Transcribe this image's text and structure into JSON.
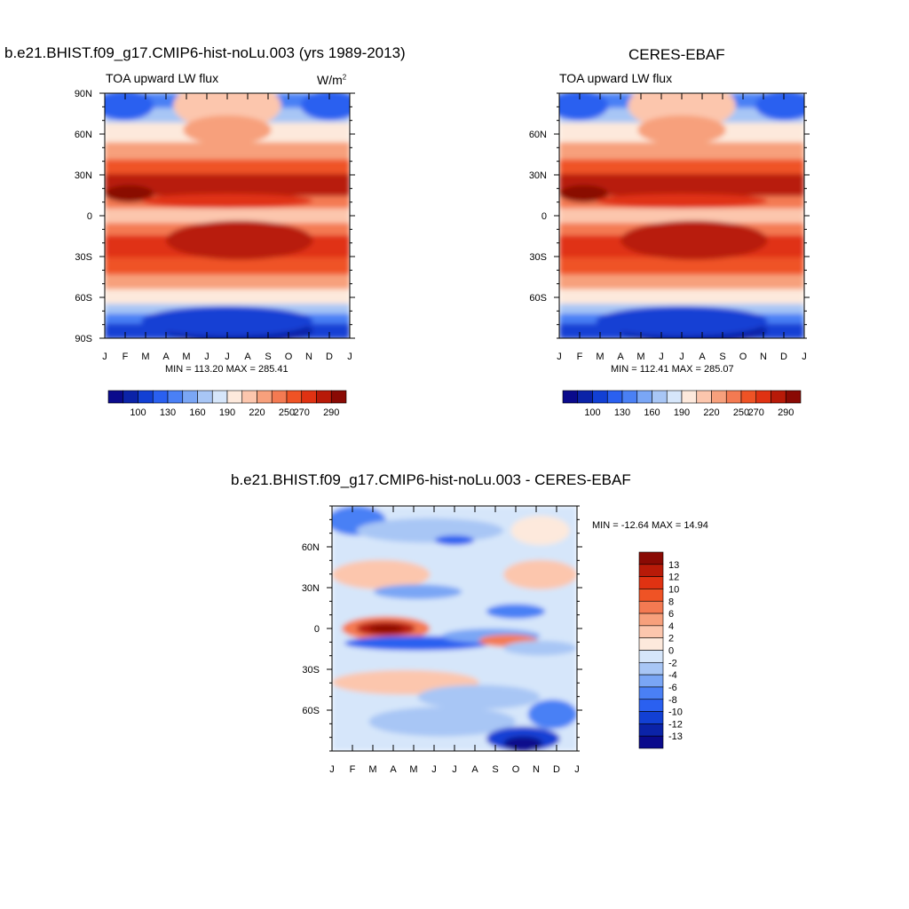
{
  "chart_data": [
    {
      "type": "heatmap",
      "title": "b.e21.BHIST.f09_g17.CMIP6-hist-noLu.003 (yrs 1989-2013)",
      "subtitle": "TOA upward LW flux",
      "units_label": "W/m",
      "units_superscript": "2",
      "x_ticks": [
        "J",
        "F",
        "M",
        "A",
        "M",
        "J",
        "J",
        "A",
        "S",
        "O",
        "N",
        "D",
        "J"
      ],
      "y_ticks": [
        "90N",
        "60N",
        "30N",
        "0",
        "30S",
        "60S",
        "90S"
      ],
      "stats": "MIN = 113.20 MAX = 285.41",
      "colorbar_labels": [
        "100",
        "130",
        "160",
        "190",
        "220",
        "250",
        "270",
        "290"
      ],
      "ylim": [
        -90,
        90
      ]
    },
    {
      "type": "heatmap",
      "title": "CERES-EBAF",
      "subtitle": "TOA upward LW flux",
      "x_ticks": [
        "J",
        "F",
        "M",
        "A",
        "M",
        "J",
        "J",
        "A",
        "S",
        "O",
        "N",
        "D",
        "J"
      ],
      "y_ticks": [
        "60N",
        "30N",
        "0",
        "30S",
        "60S"
      ],
      "stats": "MIN = 112.41 MAX = 285.07",
      "colorbar_labels": [
        "100",
        "130",
        "160",
        "190",
        "220",
        "250",
        "270",
        "290"
      ],
      "ylim": [
        -90,
        90
      ]
    },
    {
      "type": "heatmap",
      "title": "b.e21.BHIST.f09_g17.CMIP6-hist-noLu.003 - CERES-EBAF",
      "x_ticks": [
        "J",
        "F",
        "M",
        "A",
        "M",
        "J",
        "J",
        "A",
        "S",
        "O",
        "N",
        "D",
        "J"
      ],
      "y_ticks": [
        "60N",
        "30N",
        "0",
        "30S",
        "60S"
      ],
      "stats": "MIN = -12.64 MAX =  14.94",
      "colorbar_labels": [
        "13",
        "12",
        "10",
        "8",
        "6",
        "4",
        "2",
        "0",
        "-2",
        "-4",
        "-6",
        "-8",
        "-10",
        "-12",
        "-13"
      ],
      "ylim": [
        -90,
        90
      ]
    }
  ],
  "palettes": {
    "absolute": [
      "#0a0a8c",
      "#0b23a8",
      "#1240d4",
      "#2a60f0",
      "#4a80f5",
      "#7aa6f5",
      "#a8c6f5",
      "#d6e6fa",
      "#fde9dc",
      "#fcc6ad",
      "#f7a07c",
      "#f47a52",
      "#ef5325",
      "#e03212",
      "#b81a08",
      "#8a0a04"
    ],
    "difference": [
      "#8a0a04",
      "#b81a08",
      "#e03212",
      "#ef5325",
      "#f47a52",
      "#f7a07c",
      "#fcc6ad",
      "#fde9dc",
      "#d6e6fa",
      "#a8c6f5",
      "#7aa6f5",
      "#4a80f5",
      "#2a60f0",
      "#1240d4",
      "#0b23a8",
      "#0a0a8c"
    ]
  }
}
